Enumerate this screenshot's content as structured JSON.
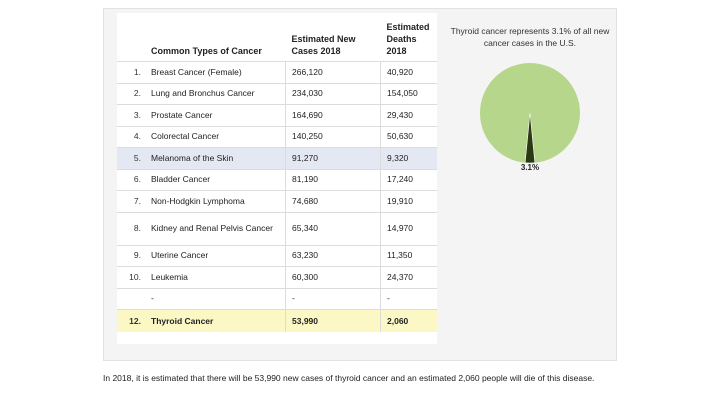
{
  "table": {
    "headers": {
      "name": "Common Types of Cancer",
      "new_cases": "Estimated New Cases 2018",
      "deaths": "Estimated Deaths 2018"
    },
    "rows": [
      {
        "rank": "1.",
        "name": "Breast Cancer (Female)",
        "new_cases": "266,120",
        "deaths": "40,920"
      },
      {
        "rank": "2.",
        "name": "Lung and Bronchus Cancer",
        "new_cases": "234,030",
        "deaths": "154,050"
      },
      {
        "rank": "3.",
        "name": "Prostate Cancer",
        "new_cases": "164,690",
        "deaths": "29,430"
      },
      {
        "rank": "4.",
        "name": "Colorectal Cancer",
        "new_cases": "140,250",
        "deaths": "50,630"
      },
      {
        "rank": "5.",
        "name": "Melanoma of the Skin",
        "new_cases": "91,270",
        "deaths": "9,320"
      },
      {
        "rank": "6.",
        "name": "Bladder Cancer",
        "new_cases": "81,190",
        "deaths": "17,240"
      },
      {
        "rank": "7.",
        "name": "Non-Hodgkin Lymphoma",
        "new_cases": "74,680",
        "deaths": "19,910"
      },
      {
        "rank": "8.",
        "name": "Kidney and Renal Pelvis Cancer",
        "new_cases": "65,340",
        "deaths": "14,970"
      },
      {
        "rank": "9.",
        "name": "Uterine Cancer",
        "new_cases": "63,230",
        "deaths": "11,350"
      },
      {
        "rank": "10.",
        "name": "Leukemia",
        "new_cases": "60,300",
        "deaths": "24,370"
      },
      {
        "rank": "",
        "name": "-",
        "new_cases": "-",
        "deaths": "-"
      },
      {
        "rank": "12.",
        "name": "Thyroid Cancer",
        "new_cases": "53,990",
        "deaths": "2,060"
      }
    ]
  },
  "pie": {
    "caption": "Thyroid cancer represents 3.1% of all new cancer cases in the U.S.",
    "percent": 3.1,
    "label": "3.1%",
    "main_color": "#b5d68b",
    "slice_color": "#2c3a14"
  },
  "footer_text": "In 2018, it is estimated that there will be 53,990 new cases of thyroid cancer and an estimated 2,060 people will die of this disease."
}
